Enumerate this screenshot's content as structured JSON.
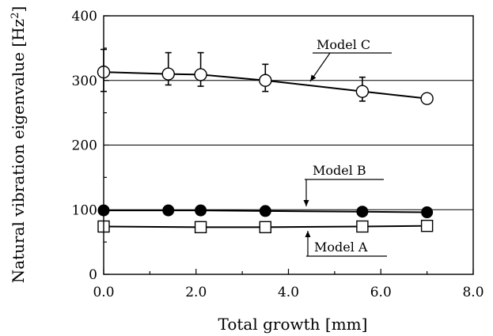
{
  "chart_data": {
    "type": "line",
    "xlabel": "Total growth [mm]",
    "ylabel": "Natural vibration eigenvalue [Hz",
    "ylabel_sup": "2",
    "ylabel_end": "]",
    "xlim": [
      0,
      8
    ],
    "ylim": [
      0,
      400
    ],
    "x_ticks": [
      "0.0",
      "2.0",
      "4.0",
      "6.0",
      "8.0"
    ],
    "y_ticks": [
      "0",
      "100",
      "200",
      "300",
      "400"
    ],
    "horizontal_gridlines_at": [
      100,
      200,
      300
    ],
    "series": [
      {
        "name": "Model C",
        "marker": "open-circle",
        "x": [
          0.0,
          1.4,
          2.1,
          3.5,
          5.6,
          7.0
        ],
        "y": [
          313,
          310,
          309,
          300,
          283,
          272
        ],
        "err_plus": [
          35,
          33,
          34,
          25,
          22,
          8
        ],
        "err_minus": [
          30,
          17,
          18,
          17,
          15,
          8
        ]
      },
      {
        "name": "Model B",
        "marker": "filled-circle",
        "x": [
          0.0,
          1.4,
          2.1,
          3.5,
          5.6,
          7.0
        ],
        "y": [
          99,
          99,
          99,
          98,
          97,
          96
        ]
      },
      {
        "name": "Model A",
        "marker": "open-square",
        "x": [
          0.0,
          2.1,
          3.5,
          5.6,
          7.0
        ],
        "y": [
          74,
          73,
          73,
          74,
          75
        ]
      }
    ]
  }
}
